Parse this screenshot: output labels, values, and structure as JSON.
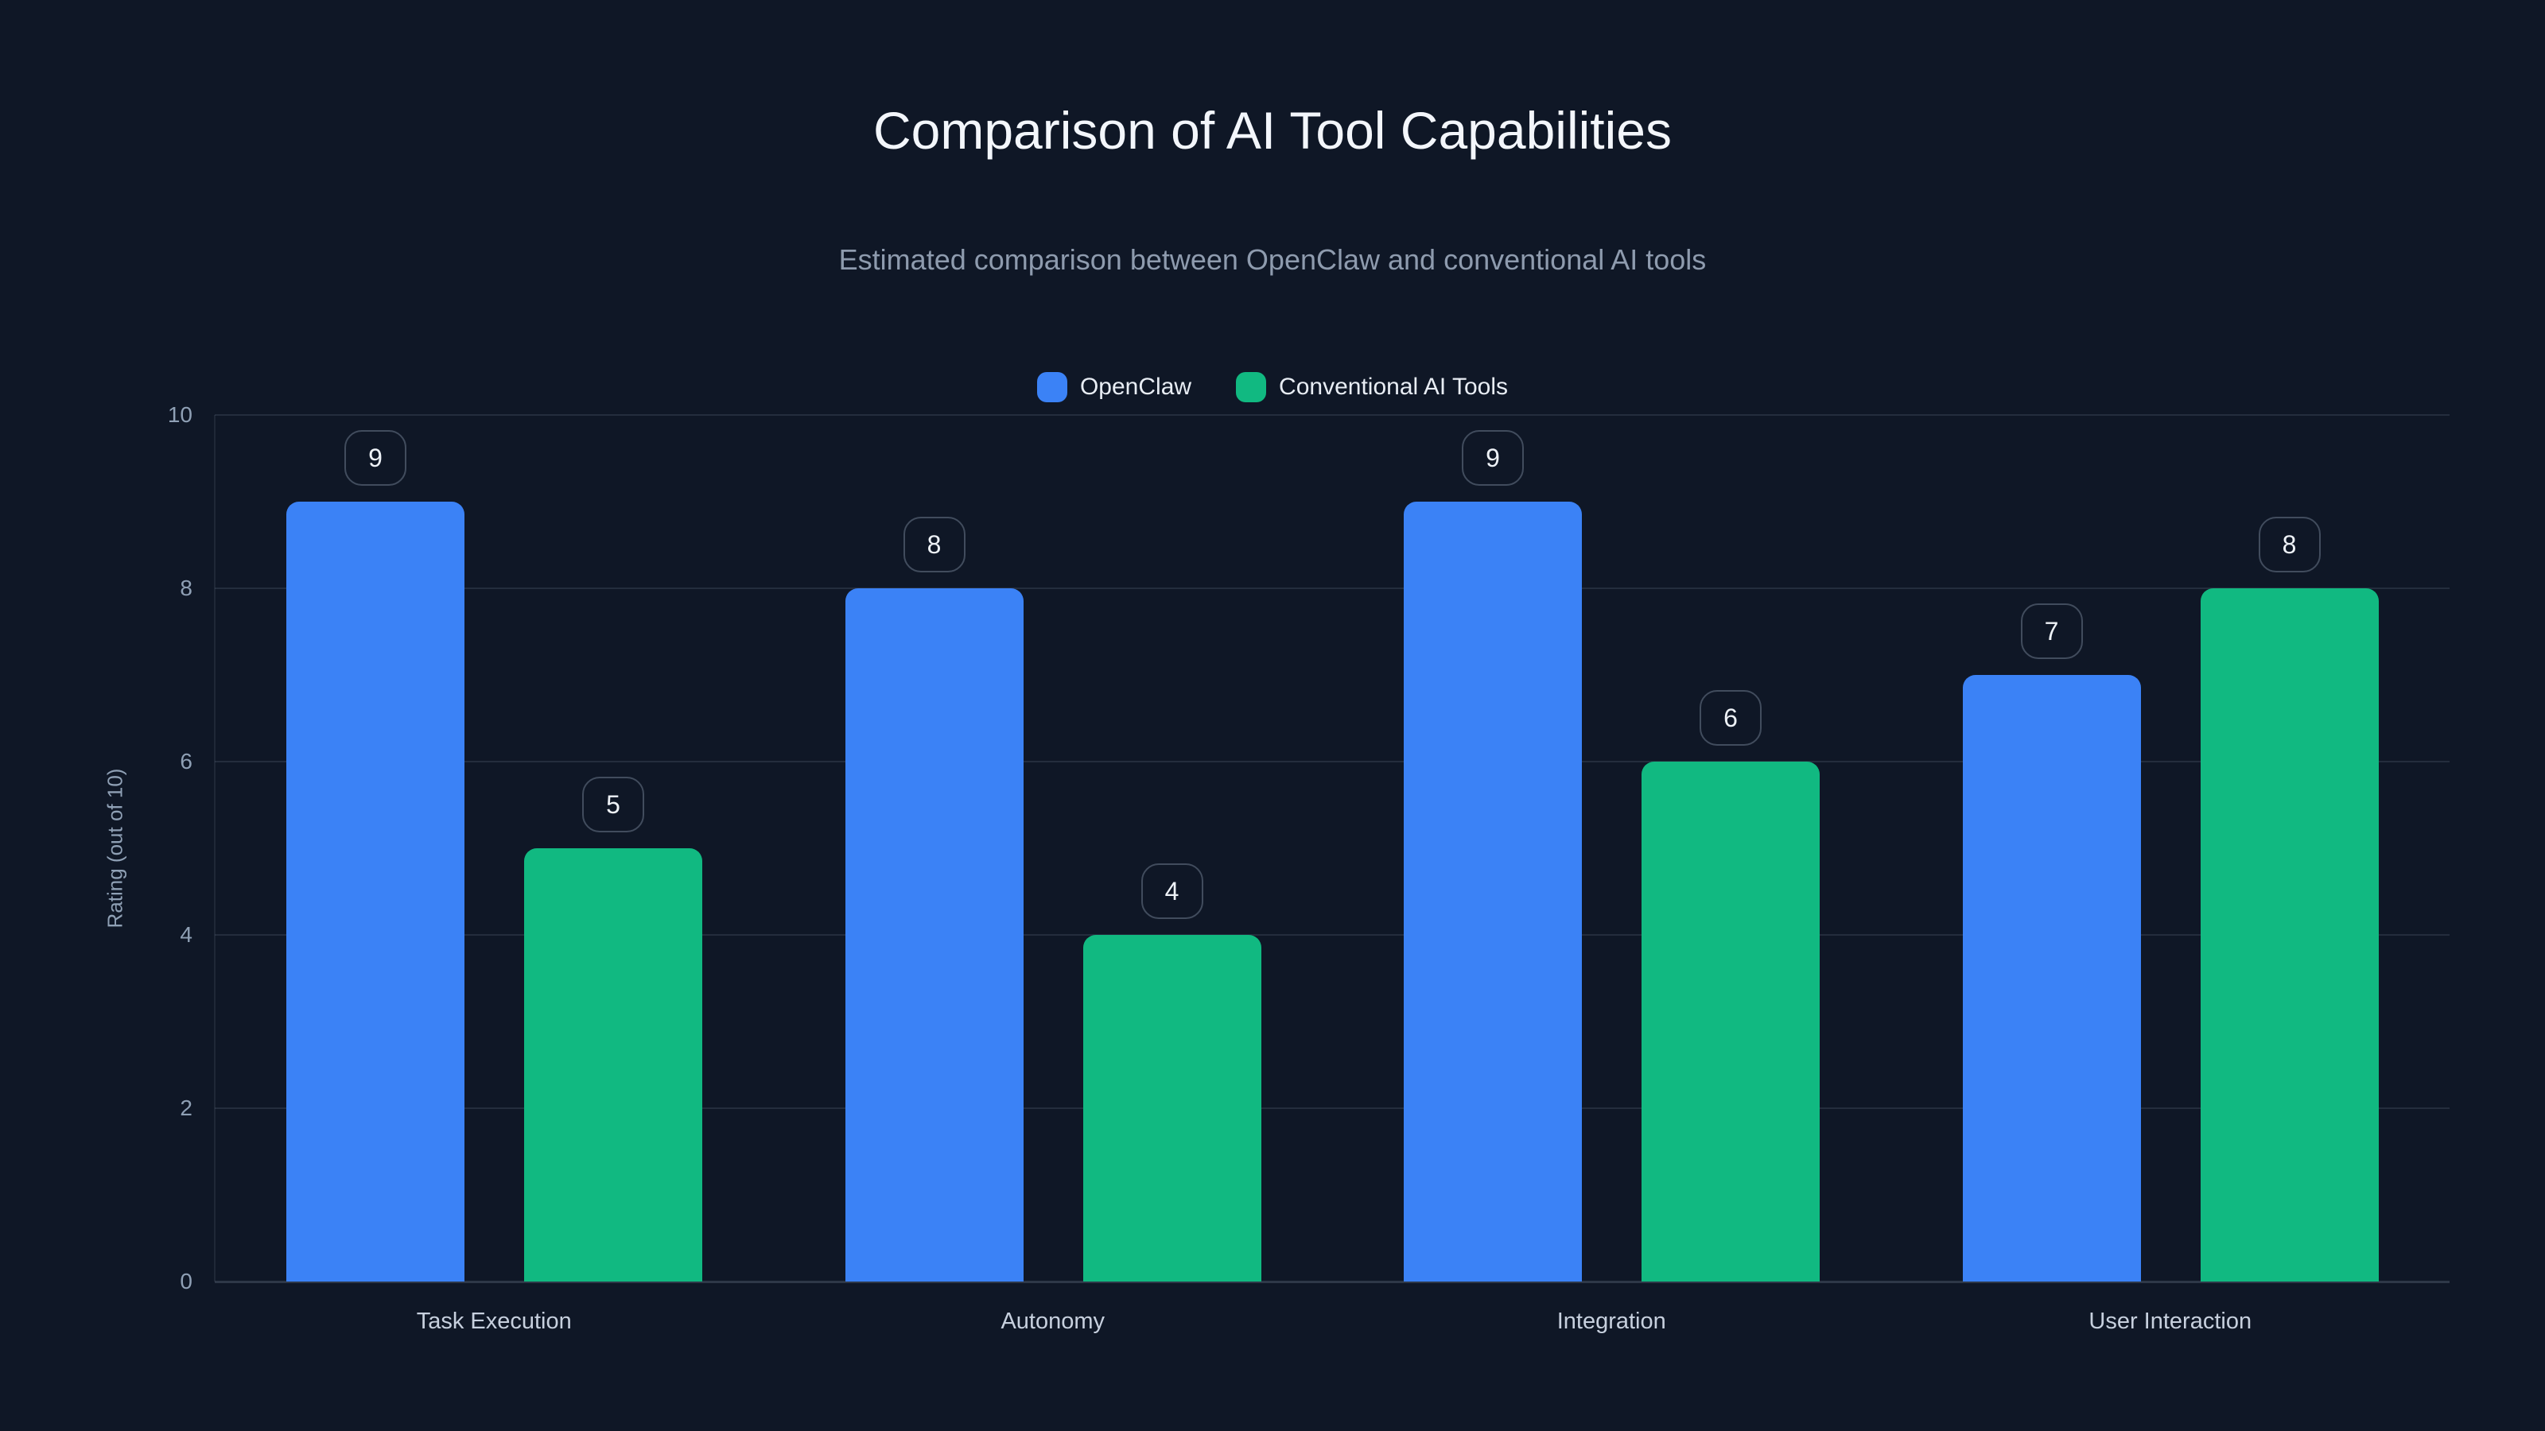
{
  "colors": {
    "background": "#0f1726",
    "title_text": "#f3f6fb",
    "subtitle_text": "#8e9bae",
    "legend_text": "#e8edf4",
    "axis_tick_text": "#8fa0b5",
    "x_label_text": "#c7d0de",
    "gridline": "rgba(148,163,184,0.16)",
    "axis_line": "rgba(148,163,184,0.12)",
    "baseline": "rgba(148,163,184,0.24)",
    "badge_border": "rgba(148,163,184,0.38)",
    "badge_text": "#eef2f7"
  },
  "chart_data": {
    "type": "bar",
    "title": "Comparison of AI Tool Capabilities",
    "subtitle": "Estimated comparison between OpenClaw and conventional AI tools",
    "categories": [
      "Task Execution",
      "Autonomy",
      "Integration",
      "User Interaction"
    ],
    "series": [
      {
        "name": "OpenClaw",
        "color": "#3b82f6",
        "values": [
          9,
          8,
          9,
          7
        ]
      },
      {
        "name": "Conventional AI Tools",
        "color": "#11b981",
        "values": [
          5,
          4,
          6,
          8
        ]
      }
    ],
    "ylabel": "Rating (out of 10)",
    "xlabel": "",
    "ylim": [
      0,
      10
    ],
    "yticks": [
      0,
      2,
      4,
      6,
      8,
      10
    ],
    "grid": "horizontal",
    "legend_position": "top",
    "value_labels": "rounded badge above each bar"
  }
}
